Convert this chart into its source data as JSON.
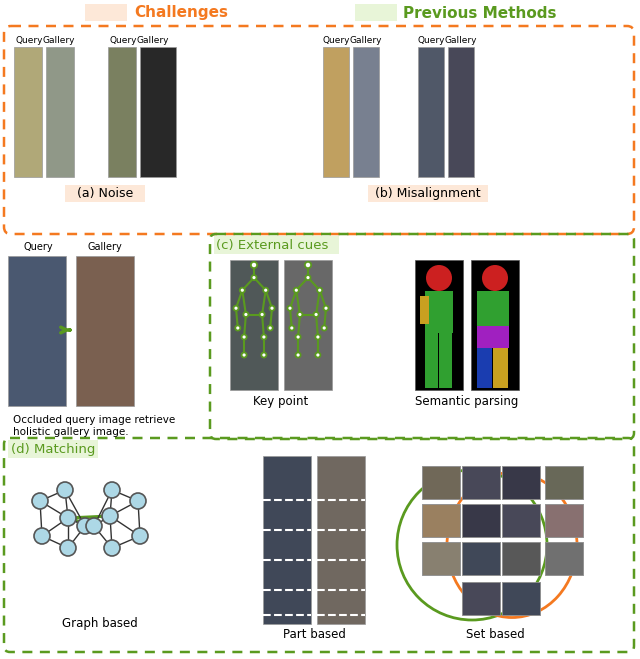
{
  "title_challenges": "Challenges",
  "title_prev_methods": "Previous Methods",
  "challenges_color": "#f47920",
  "prev_methods_color": "#5a9a1f",
  "challenges_bg": "#fde8d8",
  "prev_methods_bg": "#e8f5d8",
  "orange_dashed_color": "#f47920",
  "green_dashed_color": "#5a9a1f",
  "label_a": "(a) Noise",
  "label_b": "(b) Misalignment",
  "label_c": "(c) External cues",
  "label_d": "(d) Matching",
  "label_keypoint": "Key point",
  "label_semantic": "Semantic parsing",
  "label_graph": "Graph based",
  "label_part": "Part based",
  "label_set": "Set based",
  "caption_text": "Occluded query image retrieve\nholistic gallery image.",
  "query_label": "Query",
  "gallery_label": "Gallery",
  "node_color": "#add8e6",
  "node_edge_color": "#555555",
  "green_edge_color": "#5a9a1f",
  "keypoint_color": "#5a9a1f",
  "orange_circle_color": "#f47920",
  "green_circle_color": "#5a9a1f",
  "arrow_color": "#5a9a1f",
  "label_a_bg": "#fde8d8",
  "label_b_bg": "#fde8d8",
  "label_d_bg": "#e8f5d8"
}
